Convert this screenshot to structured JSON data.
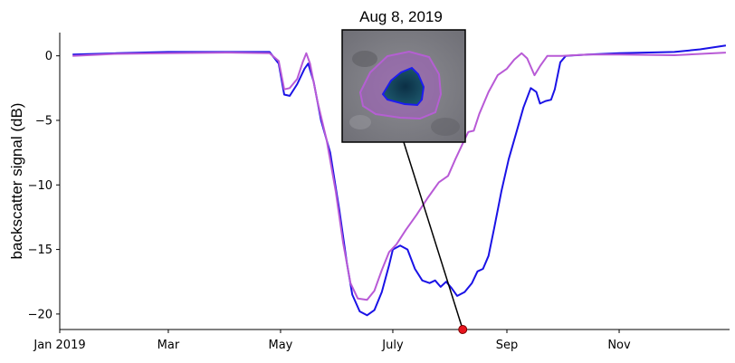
{
  "chart_data": {
    "type": "line",
    "title": "",
    "xlabel": "",
    "ylabel": "backscatter signal (dB)",
    "xlim": [
      "2019-01-01",
      "2019-12-31"
    ],
    "ylim": [
      -21.2,
      1.8
    ],
    "x_ticks": [
      {
        "date": "2019-01-01",
        "label": "Jan 2019"
      },
      {
        "date": "2019-03-01",
        "label": "Mar"
      },
      {
        "date": "2019-05-01",
        "label": "May"
      },
      {
        "date": "2019-07-01",
        "label": "July"
      },
      {
        "date": "2019-09-01",
        "label": "Sep"
      },
      {
        "date": "2019-11-01",
        "label": "Nov"
      }
    ],
    "y_ticks": [
      0,
      -5,
      -10,
      -15,
      -20
    ],
    "grid": false,
    "series": [
      {
        "color": "#1a12e6",
        "points": [
          [
            "2019-01-08",
            0.1
          ],
          [
            "2019-02-01",
            0.2
          ],
          [
            "2019-03-01",
            0.3
          ],
          [
            "2019-04-01",
            0.3
          ],
          [
            "2019-04-25",
            0.3
          ],
          [
            "2019-04-30",
            -0.6
          ],
          [
            "2019-05-03",
            -3.0
          ],
          [
            "2019-05-06",
            -3.1
          ],
          [
            "2019-05-10",
            -2.2
          ],
          [
            "2019-05-14",
            -1.0
          ],
          [
            "2019-05-16",
            -0.6
          ],
          [
            "2019-05-19",
            -2.0
          ],
          [
            "2019-05-23",
            -5.0
          ],
          [
            "2019-05-28",
            -7.5
          ],
          [
            "2019-06-02",
            -12.0
          ],
          [
            "2019-06-06",
            -16.0
          ],
          [
            "2019-06-09",
            -18.5
          ],
          [
            "2019-06-13",
            -19.8
          ],
          [
            "2019-06-17",
            -20.1
          ],
          [
            "2019-06-21",
            -19.7
          ],
          [
            "2019-06-25",
            -18.3
          ],
          [
            "2019-06-29",
            -16.2
          ],
          [
            "2019-07-01",
            -15.0
          ],
          [
            "2019-07-05",
            -14.7
          ],
          [
            "2019-07-09",
            -15.0
          ],
          [
            "2019-07-13",
            -16.5
          ],
          [
            "2019-07-17",
            -17.4
          ],
          [
            "2019-07-21",
            -17.6
          ],
          [
            "2019-07-24",
            -17.4
          ],
          [
            "2019-07-27",
            -17.9
          ],
          [
            "2019-07-30",
            -17.5
          ],
          [
            "2019-08-02",
            -18.0
          ],
          [
            "2019-08-05",
            -18.6
          ],
          [
            "2019-08-09",
            -18.3
          ],
          [
            "2019-08-13",
            -17.6
          ],
          [
            "2019-08-16",
            -16.7
          ],
          [
            "2019-08-19",
            -16.5
          ],
          [
            "2019-08-22",
            -15.5
          ],
          [
            "2019-08-25",
            -13.4
          ],
          [
            "2019-08-29",
            -10.5
          ],
          [
            "2019-09-02",
            -8.0
          ],
          [
            "2019-09-06",
            -6.0
          ],
          [
            "2019-09-10",
            -4.0
          ],
          [
            "2019-09-14",
            -2.5
          ],
          [
            "2019-09-17",
            -2.8
          ],
          [
            "2019-09-19",
            -3.7
          ],
          [
            "2019-09-22",
            -3.5
          ],
          [
            "2019-09-25",
            -3.4
          ],
          [
            "2019-09-27",
            -2.6
          ],
          [
            "2019-09-30",
            -0.5
          ],
          [
            "2019-10-03",
            0.0
          ],
          [
            "2019-10-15",
            0.1
          ],
          [
            "2019-11-01",
            0.2
          ],
          [
            "2019-12-01",
            0.3
          ],
          [
            "2019-12-15",
            0.5
          ],
          [
            "2019-12-29",
            0.8
          ]
        ]
      },
      {
        "color": "#b85ad6",
        "points": [
          [
            "2019-01-08",
            0.0
          ],
          [
            "2019-02-01",
            0.15
          ],
          [
            "2019-03-01",
            0.2
          ],
          [
            "2019-04-01",
            0.25
          ],
          [
            "2019-04-25",
            0.2
          ],
          [
            "2019-04-30",
            -0.4
          ],
          [
            "2019-05-03",
            -2.6
          ],
          [
            "2019-05-06",
            -2.5
          ],
          [
            "2019-05-10",
            -1.8
          ],
          [
            "2019-05-13",
            -0.5
          ],
          [
            "2019-05-15",
            0.2
          ],
          [
            "2019-05-17",
            -0.6
          ],
          [
            "2019-05-21",
            -3.5
          ],
          [
            "2019-05-26",
            -6.5
          ],
          [
            "2019-05-31",
            -10.5
          ],
          [
            "2019-06-04",
            -14.5
          ],
          [
            "2019-06-08",
            -17.6
          ],
          [
            "2019-06-12",
            -18.8
          ],
          [
            "2019-06-17",
            -18.9
          ],
          [
            "2019-06-21",
            -18.2
          ],
          [
            "2019-06-25",
            -16.6
          ],
          [
            "2019-06-29",
            -15.2
          ],
          [
            "2019-07-03",
            -14.6
          ],
          [
            "2019-07-08",
            -13.5
          ],
          [
            "2019-07-14",
            -12.3
          ],
          [
            "2019-07-20",
            -11.0
          ],
          [
            "2019-07-26",
            -9.8
          ],
          [
            "2019-07-31",
            -9.3
          ],
          [
            "2019-08-04",
            -8.0
          ],
          [
            "2019-08-08",
            -6.8
          ],
          [
            "2019-08-11",
            -5.9
          ],
          [
            "2019-08-14",
            -5.8
          ],
          [
            "2019-08-17",
            -4.5
          ],
          [
            "2019-08-22",
            -2.8
          ],
          [
            "2019-08-27",
            -1.5
          ],
          [
            "2019-09-01",
            -1.0
          ],
          [
            "2019-09-05",
            -0.3
          ],
          [
            "2019-09-09",
            0.2
          ],
          [
            "2019-09-12",
            -0.2
          ],
          [
            "2019-09-16",
            -1.5
          ],
          [
            "2019-09-19",
            -0.8
          ],
          [
            "2019-09-23",
            0.0
          ],
          [
            "2019-10-01",
            0.0
          ],
          [
            "2019-10-15",
            0.1
          ],
          [
            "2019-11-01",
            0.1
          ],
          [
            "2019-12-01",
            0.05
          ],
          [
            "2019-12-29",
            0.25
          ]
        ]
      }
    ],
    "annotation": {
      "label": "Aug 8, 2019",
      "date": "2019-08-08",
      "marker_color": "#e8141e"
    }
  }
}
